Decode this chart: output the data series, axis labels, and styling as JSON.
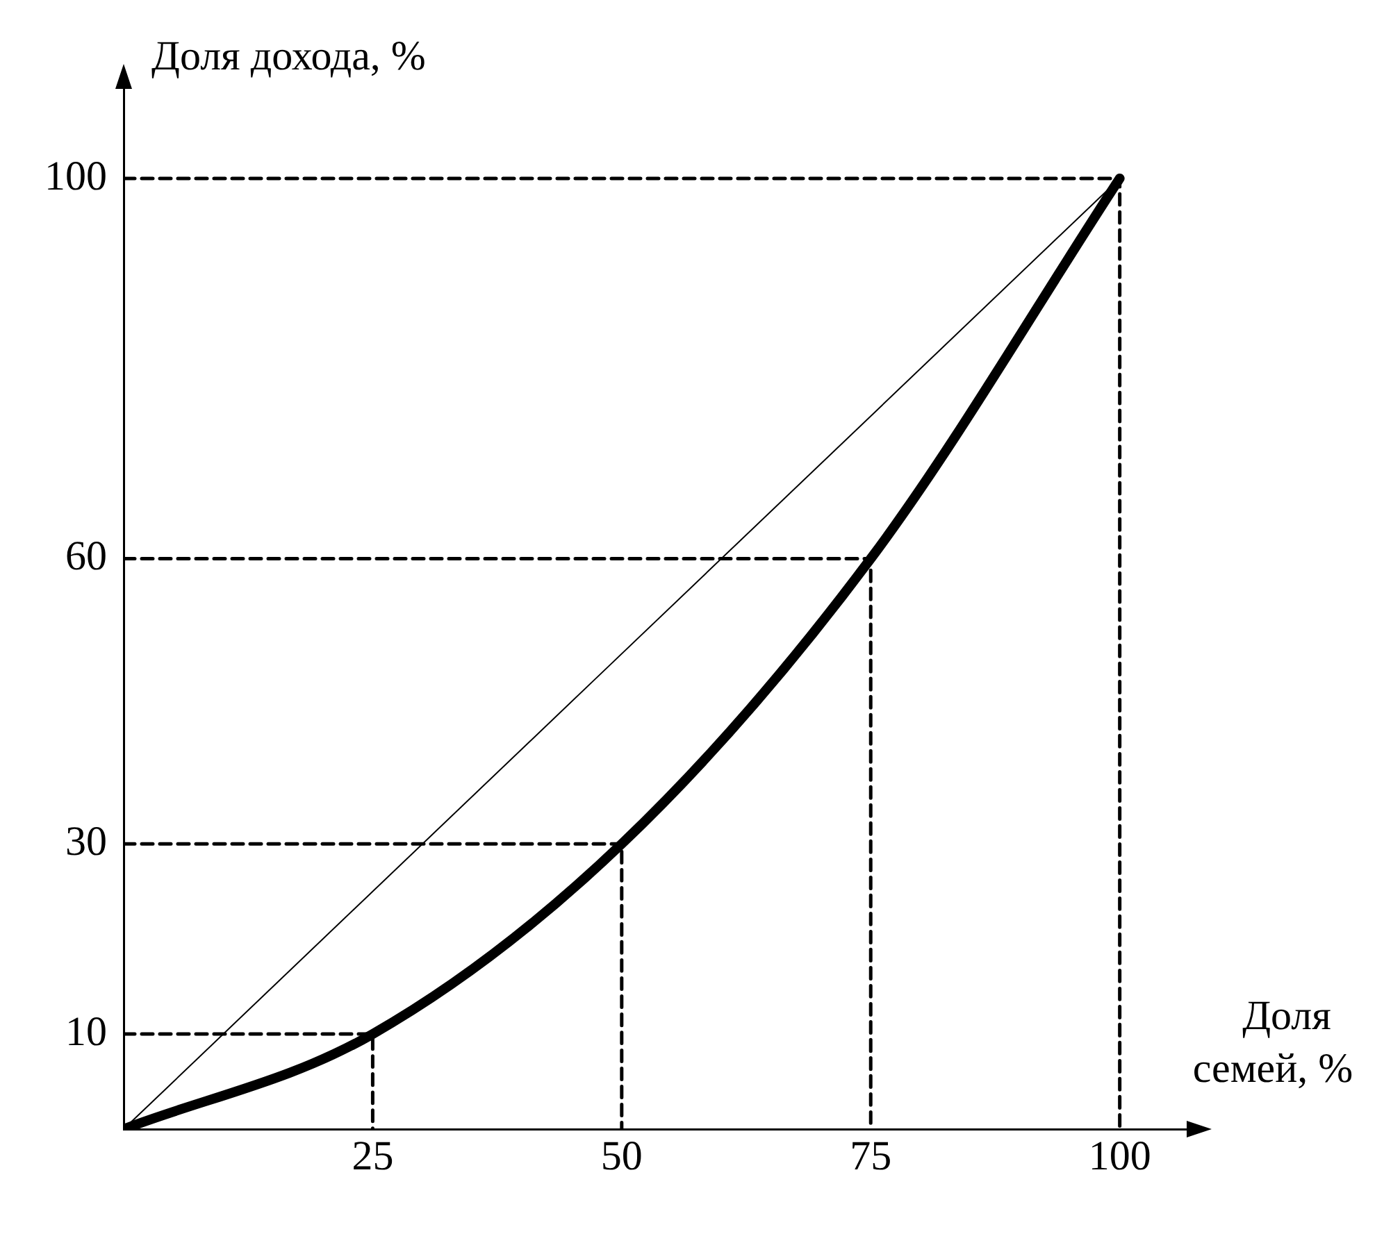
{
  "chart_data": {
    "type": "line",
    "xlabel": "Доля семей, %",
    "ylabel": "Доля дохода, %",
    "xlim": [
      0,
      107
    ],
    "ylim": [
      0,
      110
    ],
    "xticks": [
      25,
      50,
      75,
      100
    ],
    "yticks": [
      10,
      30,
      60,
      100
    ],
    "grid": false,
    "legend": false,
    "marker": "none",
    "series": [
      {
        "color": "#000000",
        "x": [
          0,
          25,
          50,
          75,
          100
        ],
        "values": [
          0,
          10,
          30,
          60,
          100
        ],
        "line_style": "solid"
      },
      {
        "color": "#000000",
        "x": [
          0,
          100
        ],
        "values": [
          0,
          100
        ],
        "line_style": "solid"
      },
      {
        "color": "#000000",
        "x": [
          0,
          25,
          25
        ],
        "values": [
          10,
          10,
          0
        ],
        "line_style": "dashed"
      },
      {
        "color": "#000000",
        "x": [
          0,
          50,
          50
        ],
        "values": [
          30,
          30,
          0
        ],
        "line_style": "dashed"
      },
      {
        "color": "#000000",
        "x": [
          0,
          75,
          75
        ],
        "values": [
          60,
          60,
          0
        ],
        "line_style": "dashed"
      },
      {
        "color": "#000000",
        "x": [
          0,
          100,
          100
        ],
        "values": [
          100,
          100,
          0
        ],
        "line_style": "dashed"
      }
    ]
  }
}
